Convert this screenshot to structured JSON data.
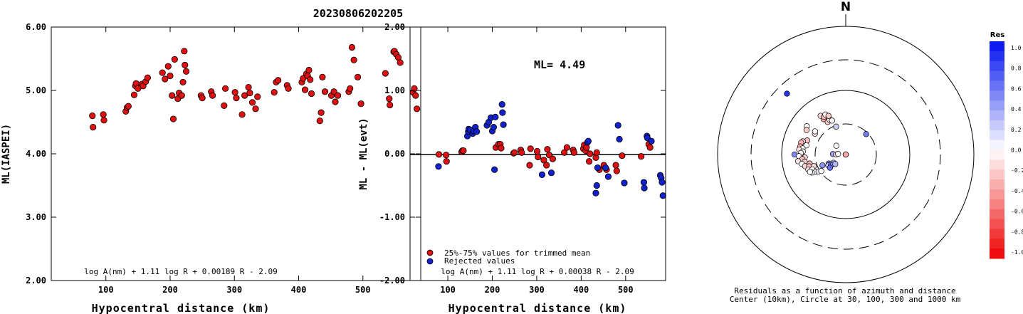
{
  "title": "20230806202205",
  "chart_data": [
    {
      "type": "scatter",
      "xlabel": "Hypocentral distance (km)",
      "ylabel": "ML(IASPEI)",
      "xticks": [
        "100",
        "200",
        "300",
        "400",
        "500"
      ],
      "yticks": [
        "2.00",
        "3.00",
        "4.00",
        "5.00",
        "6.00"
      ],
      "xlim": [
        15,
        590
      ],
      "ylim": [
        2.0,
        6.0
      ],
      "formula": "log A(nm) + 1.11 log R + 0.00189 R - 2.09",
      "color": "#dd1111",
      "points": [
        [
          79,
          4.6
        ],
        [
          80,
          4.42
        ],
        [
          96,
          4.62
        ],
        [
          97,
          4.53
        ],
        [
          131,
          4.67
        ],
        [
          133,
          4.73
        ],
        [
          135,
          4.75
        ],
        [
          144,
          4.93
        ],
        [
          146,
          5.07
        ],
        [
          147,
          5.11
        ],
        [
          150,
          5.03
        ],
        [
          156,
          5.1
        ],
        [
          158,
          5.07
        ],
        [
          162,
          5.14
        ],
        [
          165,
          5.2
        ],
        [
          188,
          5.28
        ],
        [
          192,
          5.18
        ],
        [
          197,
          5.38
        ],
        [
          200,
          5.23
        ],
        [
          203,
          4.92
        ],
        [
          205,
          4.55
        ],
        [
          207,
          5.49
        ],
        [
          212,
          4.87
        ],
        [
          214,
          4.96
        ],
        [
          218,
          4.92
        ],
        [
          220,
          5.13
        ],
        [
          222,
          5.62
        ],
        [
          223,
          5.4
        ],
        [
          225,
          5.3
        ],
        [
          248,
          4.92
        ],
        [
          250,
          4.88
        ],
        [
          264,
          4.98
        ],
        [
          266,
          4.92
        ],
        [
          284,
          4.76
        ],
        [
          286,
          5.03
        ],
        [
          301,
          4.97
        ],
        [
          303,
          4.88
        ],
        [
          312,
          4.62
        ],
        [
          316,
          4.92
        ],
        [
          322,
          5.05
        ],
        [
          324,
          4.96
        ],
        [
          328,
          4.81
        ],
        [
          333,
          4.71
        ],
        [
          336,
          4.9
        ],
        [
          362,
          4.97
        ],
        [
          365,
          5.13
        ],
        [
          368,
          5.16
        ],
        [
          382,
          5.08
        ],
        [
          384,
          5.03
        ],
        [
          405,
          5.13
        ],
        [
          407,
          5.19
        ],
        [
          410,
          5.01
        ],
        [
          412,
          5.26
        ],
        [
          414,
          5.23
        ],
        [
          416,
          5.32
        ],
        [
          418,
          5.17
        ],
        [
          420,
          4.95
        ],
        [
          433,
          4.52
        ],
        [
          435,
          4.65
        ],
        [
          437,
          5.21
        ],
        [
          441,
          4.98
        ],
        [
          451,
          4.92
        ],
        [
          455,
          4.98
        ],
        [
          457,
          4.82
        ],
        [
          461,
          4.92
        ],
        [
          478,
          4.98
        ],
        [
          480,
          5.03
        ],
        [
          483,
          5.68
        ],
        [
          486,
          5.48
        ],
        [
          492,
          5.21
        ],
        [
          497,
          4.79
        ],
        [
          535,
          5.27
        ],
        [
          541,
          4.87
        ],
        [
          542,
          4.77
        ],
        [
          548,
          5.61
        ],
        [
          549,
          5.62
        ],
        [
          552,
          5.57
        ],
        [
          555,
          5.52
        ],
        [
          558,
          5.44
        ],
        [
          578,
          4.97
        ],
        [
          580,
          5.03
        ],
        [
          582,
          4.92
        ],
        [
          584,
          4.71
        ]
      ]
    },
    {
      "type": "scatter",
      "xlabel": "Hypocentral distance (km)",
      "ylabel": "ML - ML(evt)",
      "xticks": [
        "100",
        "200",
        "300",
        "400",
        "500"
      ],
      "yticks": [
        "-2.00",
        "-1.00",
        "0.00",
        "1.00",
        "2.00"
      ],
      "xlim": [
        15,
        590
      ],
      "ylim": [
        -2.0,
        2.0
      ],
      "annotation": "ML= 4.49",
      "legend": [
        {
          "label": "25%-75% values for trimmed mean",
          "color": "#dd1111"
        },
        {
          "label": "Rejected values",
          "color": "#1122cc"
        }
      ],
      "legend_position": "bottom-left",
      "formula": "log A(nm) + 1.11 log R + 0.00038 R - 2.09",
      "series": [
        {
          "name": "25%-75% values for trimmed mean",
          "color": "#dd1111",
          "points": [
            [
              80,
              -0.01
            ],
            [
              96,
              -0.02
            ],
            [
              97,
              -0.12
            ],
            [
              131,
              0.03
            ],
            [
              133,
              0.05
            ],
            [
              135,
              0.05
            ],
            [
              208,
              0.1
            ],
            [
              214,
              0.15
            ],
            [
              218,
              0.15
            ],
            [
              220,
              0.09
            ],
            [
              248,
              0.01
            ],
            [
              250,
              0.02
            ],
            [
              264,
              0.06
            ],
            [
              266,
              0.02
            ],
            [
              284,
              -0.18
            ],
            [
              286,
              0.08
            ],
            [
              301,
              0.04
            ],
            [
              303,
              -0.05
            ],
            [
              316,
              -0.1
            ],
            [
              322,
              -0.18
            ],
            [
              324,
              0.07
            ],
            [
              328,
              -0.02
            ],
            [
              336,
              -0.08
            ],
            [
              362,
              0.02
            ],
            [
              368,
              0.1
            ],
            [
              382,
              0.06
            ],
            [
              384,
              0.02
            ],
            [
              405,
              0.08
            ],
            [
              407,
              0.14
            ],
            [
              410,
              0.05
            ],
            [
              412,
              0.1
            ],
            [
              418,
              -0.12
            ],
            [
              420,
              0.0
            ],
            [
              433,
              -0.06
            ],
            [
              435,
              0.02
            ],
            [
              441,
              -0.25
            ],
            [
              451,
              -0.18
            ],
            [
              457,
              -0.25
            ],
            [
              478,
              -0.18
            ],
            [
              480,
              -0.27
            ],
            [
              492,
              -0.03
            ],
            [
              535,
              -0.04
            ],
            [
              552,
              0.15
            ],
            [
              555,
              0.1
            ]
          ]
        },
        {
          "name": "Rejected values",
          "color": "#1122cc",
          "points": [
            [
              79,
              -0.2
            ],
            [
              144,
              0.28
            ],
            [
              146,
              0.35
            ],
            [
              147,
              0.39
            ],
            [
              150,
              0.38
            ],
            [
              156,
              0.32
            ],
            [
              158,
              0.36
            ],
            [
              162,
              0.42
            ],
            [
              165,
              0.35
            ],
            [
              188,
              0.45
            ],
            [
              192,
              0.5
            ],
            [
              197,
              0.57
            ],
            [
              200,
              0.36
            ],
            [
              203,
              0.42
            ],
            [
              205,
              -0.25
            ],
            [
              207,
              0.58
            ],
            [
              222,
              0.78
            ],
            [
              223,
              0.65
            ],
            [
              225,
              0.46
            ],
            [
              312,
              -0.33
            ],
            [
              333,
              -0.3
            ],
            [
              414,
              0.18
            ],
            [
              416,
              0.2
            ],
            [
              433,
              -0.62
            ],
            [
              435,
              -0.5
            ],
            [
              437,
              -0.22
            ],
            [
              455,
              -0.22
            ],
            [
              461,
              -0.36
            ],
            [
              483,
              0.45
            ],
            [
              486,
              0.23
            ],
            [
              497,
              -0.46
            ],
            [
              541,
              -0.45
            ],
            [
              542,
              -0.54
            ],
            [
              548,
              0.28
            ],
            [
              549,
              0.25
            ],
            [
              558,
              0.2
            ],
            [
              578,
              -0.34
            ],
            [
              580,
              -0.38
            ],
            [
              582,
              -0.45
            ],
            [
              584,
              -0.66
            ]
          ]
        }
      ]
    },
    {
      "type": "scatter",
      "north_label": "N",
      "caption_line1": "Residuals as a function of azimuth and distance",
      "caption_line2": "Center (10km), Circle at 30, 100, 300 and 1000 km",
      "colorbar_title": "Res",
      "colorbar_labels": [
        "1.0",
        "0.8",
        "0.6",
        "0.4",
        "0.2",
        "0.0",
        "-0.2",
        "-0.4",
        "-0.6",
        "-0.8",
        "-1.0"
      ],
      "colorbar_colors": {
        "positive": "#0011ee",
        "zero": "#ffffff",
        "negative": "#ee0000"
      },
      "points": [
        [
          316,
          2.32,
          0.85
        ],
        [
          327,
          1.72,
          -0.15
        ],
        [
          328,
          1.65,
          -0.3
        ],
        [
          330,
          1.68,
          -0.25
        ],
        [
          331,
          1.58,
          -0.2
        ],
        [
          333,
          1.7,
          -0.05
        ],
        [
          335,
          1.6,
          -0.1
        ],
        [
          336,
          1.66,
          -0.2
        ],
        [
          338,
          1.57,
          0.0
        ],
        [
          341,
          1.46,
          0.2
        ],
        [
          306,
          1.75,
          0.0
        ],
        [
          302,
          1.72,
          -0.2
        ],
        [
          304,
          1.58,
          -0.1
        ],
        [
          307,
          1.6,
          0.0
        ],
        [
          45,
          1.45,
          0.55
        ],
        [
          313,
          1.2,
          0.0
        ],
        [
          290,
          1.64,
          -0.25
        ],
        [
          287,
          1.7,
          -0.1
        ],
        [
          285,
          1.72,
          -0.3
        ],
        [
          283,
          1.63,
          0.0
        ],
        [
          280,
          1.72,
          -0.35
        ],
        [
          278,
          1.68,
          0.0
        ],
        [
          276,
          1.73,
          -0.1
        ],
        [
          274,
          1.67,
          0.0
        ],
        [
          272,
          1.7,
          -0.05
        ],
        [
          270,
          1.8,
          0.5
        ],
        [
          268,
          1.73,
          0.0
        ],
        [
          266,
          1.64,
          -0.15
        ],
        [
          264,
          1.68,
          -0.25
        ],
        [
          262,
          1.75,
          -0.1
        ],
        [
          260,
          1.65,
          -0.2
        ],
        [
          258,
          1.7,
          0.0
        ],
        [
          256,
          1.58,
          -0.3
        ],
        [
          254,
          1.66,
          -0.15
        ],
        [
          252,
          1.6,
          -0.25
        ],
        [
          250,
          1.53,
          -0.15
        ],
        [
          248,
          1.63,
          -0.1
        ],
        [
          246,
          1.57,
          0.0
        ],
        [
          272,
          1.2,
          0.4
        ],
        [
          270,
          1.15,
          -0.2
        ],
        [
          275,
          1.12,
          0.0
        ],
        [
          265,
          0.95,
          0.0
        ],
        [
          262,
          0.88,
          0.0
        ],
        [
          260,
          0.72,
          0.0
        ],
        [
          245,
          1.4,
          0.45
        ],
        [
          242,
          1.3,
          0.5
        ],
        [
          238,
          1.32,
          0.2
        ],
        [
          236,
          1.23,
          0.25
        ],
        [
          235,
          1.28,
          0.55
        ],
        [
          232,
          1.25,
          0.45
        ],
        [
          230,
          1.32,
          0.6
        ],
        [
          228,
          1.22,
          0.3
        ],
        [
          240,
          1.54,
          0.0
        ],
        [
          238,
          1.5,
          0.1
        ],
        [
          236,
          1.46,
          0.0
        ],
        [
          242,
          1.6,
          -0.1
        ],
        [
          244,
          1.62,
          0.0
        ],
        [
          245,
          0.76,
          -0.55
        ],
        [
          243,
          0.72,
          -0.35
        ]
      ]
    }
  ]
}
